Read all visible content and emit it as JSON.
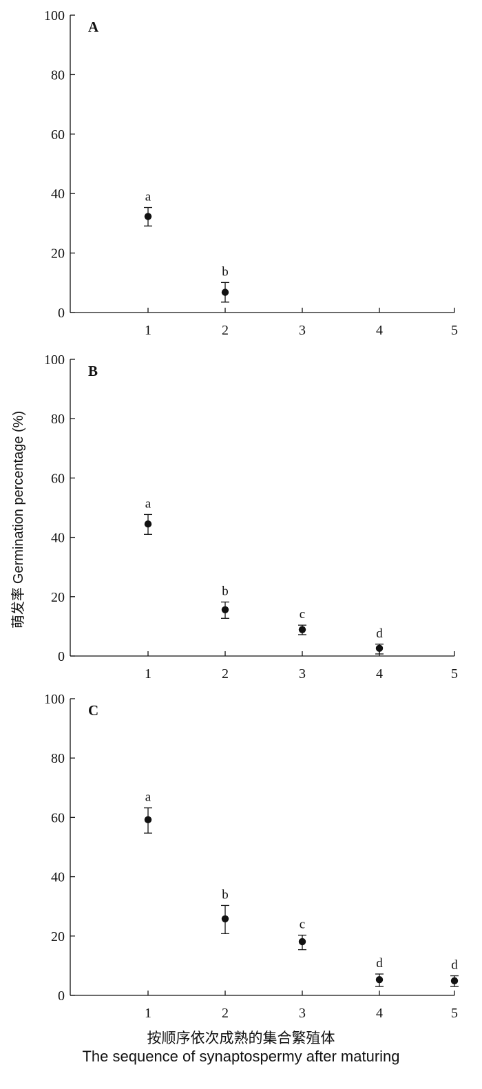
{
  "chart_data": [
    {
      "type": "scatter",
      "panel": "A",
      "x_ticks": [
        "1",
        "2",
        "3",
        "4",
        "5"
      ],
      "y_ticks": [
        "0",
        "20",
        "40",
        "60",
        "80",
        "100"
      ],
      "ylim": [
        0,
        100
      ],
      "xlim": [
        0,
        5
      ],
      "points": [
        {
          "x": 1,
          "y": 32.3,
          "err_low": 3.2,
          "err_high": 3.0,
          "letter": "a"
        },
        {
          "x": 2,
          "y": 6.8,
          "err_low": 3.3,
          "err_high": 3.3,
          "letter": "b"
        }
      ]
    },
    {
      "type": "scatter",
      "panel": "B",
      "x_ticks": [
        "1",
        "2",
        "3",
        "4",
        "5"
      ],
      "y_ticks": [
        "0",
        "20",
        "40",
        "60",
        "80",
        "100"
      ],
      "ylim": [
        0,
        100
      ],
      "xlim": [
        0,
        5
      ],
      "points": [
        {
          "x": 1,
          "y": 44.5,
          "err_low": 3.5,
          "err_high": 3.2,
          "letter": "a"
        },
        {
          "x": 2,
          "y": 15.6,
          "err_low": 2.9,
          "err_high": 2.6,
          "letter": "b"
        },
        {
          "x": 3,
          "y": 8.9,
          "err_low": 1.7,
          "err_high": 1.5,
          "letter": "c"
        },
        {
          "x": 4,
          "y": 2.6,
          "err_low": 1.9,
          "err_high": 1.4,
          "letter": "d"
        }
      ]
    },
    {
      "type": "scatter",
      "panel": "C",
      "x_ticks": [
        "1",
        "2",
        "3",
        "4",
        "5"
      ],
      "y_ticks": [
        "0",
        "20",
        "40",
        "60",
        "80",
        "100"
      ],
      "ylim": [
        0,
        100
      ],
      "xlim": [
        0,
        5
      ],
      "points": [
        {
          "x": 1,
          "y": 59.2,
          "err_low": 4.5,
          "err_high": 4.0,
          "letter": "a"
        },
        {
          "x": 2,
          "y": 25.8,
          "err_low": 5.0,
          "err_high": 4.5,
          "letter": "b"
        },
        {
          "x": 3,
          "y": 18.1,
          "err_low": 2.7,
          "err_high": 2.2,
          "letter": "c"
        },
        {
          "x": 4,
          "y": 5.3,
          "err_low": 2.3,
          "err_high": 1.9,
          "letter": "d"
        },
        {
          "x": 5,
          "y": 4.9,
          "err_low": 1.9,
          "err_high": 1.7,
          "letter": "d"
        }
      ]
    }
  ],
  "axes": {
    "y_title_cn": "萌发率",
    "y_title_en": "Germination percentage (%)",
    "x_title_cn": "按顺序依次成熟的集合繁殖体",
    "x_title_en": "The sequence of synaptospermy after maturing"
  },
  "colors": {
    "ink": "#111111",
    "background": "#ffffff"
  }
}
